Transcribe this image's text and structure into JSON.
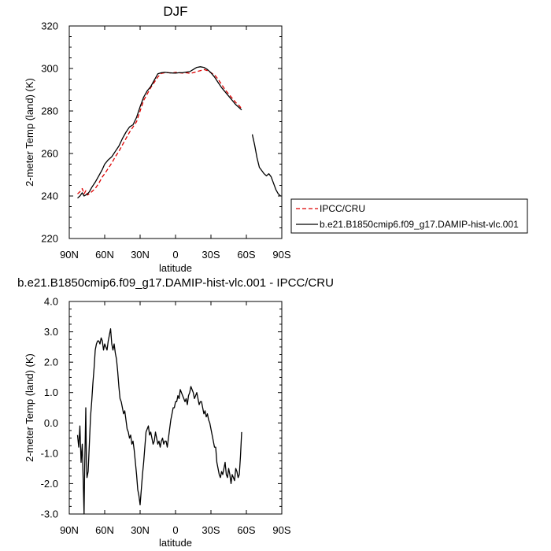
{
  "chart_data": [
    {
      "type": "line",
      "title": "DJF",
      "xlabel": "latitude",
      "ylabel": "2-meter Temp (land) (K)",
      "xlim": [
        90,
        -90
      ],
      "ylim": [
        220,
        320
      ],
      "x_ticks": [
        90,
        60,
        30,
        0,
        -30,
        -60,
        -90
      ],
      "x_tick_labels": [
        "90N",
        "60N",
        "30N",
        "0",
        "30S",
        "60S",
        "90S"
      ],
      "y_ticks": [
        220,
        240,
        260,
        280,
        300,
        320
      ],
      "y_tick_labels": [
        "220",
        "240",
        "260",
        "280",
        "300",
        "320"
      ],
      "legend": {
        "position": "right",
        "entries": [
          "IPCC/CRU",
          "b.e21.B1850cmip6.f09_g17.DAMIP-hist-vlc.001"
        ]
      },
      "series": [
        {
          "name": "IPCC/CRU",
          "color": "#dd0000",
          "dash": "dashed",
          "x": [
            83,
            81,
            79,
            77.5,
            76,
            74.5,
            73,
            71,
            68,
            65,
            62,
            60,
            57,
            54,
            51,
            48,
            45,
            42,
            39,
            36,
            33,
            30,
            27,
            24,
            21,
            18,
            15,
            12,
            9,
            6,
            3,
            0,
            -3,
            -6,
            -9,
            -12,
            -15,
            -18,
            -21,
            -24,
            -27,
            -30,
            -33,
            -36,
            -39,
            -42,
            -45,
            -48,
            -51,
            -54,
            -56
          ],
          "y": [
            241,
            242,
            243.5,
            241,
            242.5,
            240.5,
            241,
            242,
            243.5,
            246,
            249,
            250.5,
            253,
            255.5,
            258.5,
            261,
            264,
            267,
            270,
            272.5,
            275,
            280,
            285,
            288,
            291,
            293.5,
            296,
            297.7,
            298,
            298,
            297.8,
            298.2,
            298,
            297.8,
            298,
            297.7,
            298,
            298.5,
            299,
            299.5,
            299,
            298,
            297,
            295,
            292.5,
            290,
            288,
            286,
            284,
            282.5,
            281
          ]
        },
        {
          "name": "b.e21.B1850cmip6.f09_g17.DAMIP-hist-vlc.001",
          "color": "#000000",
          "dash": "solid",
          "x": [
            83,
            81,
            79,
            77.5,
            76,
            74.5,
            73,
            71,
            68,
            65,
            62,
            60,
            57,
            54,
            51,
            48,
            45,
            42,
            39,
            36,
            33,
            30,
            27,
            24,
            21,
            18,
            15,
            12,
            9,
            6,
            3,
            0,
            -3,
            -6,
            -9,
            -12,
            -15,
            -18,
            -21,
            -24,
            -27,
            -30,
            -33,
            -36,
            -39,
            -42,
            -45,
            -48,
            -51,
            -54,
            -56,
            null,
            -65,
            -67,
            -69,
            -71,
            -73,
            -75,
            -77,
            -79,
            -81,
            -83,
            -85,
            -87,
            -89
          ],
          "y": [
            239,
            240,
            241.5,
            240,
            240.5,
            241,
            242,
            244,
            246.5,
            249.5,
            252.5,
            255,
            257,
            258.5,
            261,
            263.5,
            267,
            270,
            272.5,
            273.5,
            277,
            282,
            286.5,
            289.5,
            291.5,
            294.5,
            297.5,
            298,
            298.2,
            298,
            297.9,
            297.8,
            298,
            298,
            298.3,
            298.5,
            299.5,
            300.5,
            300.8,
            300.5,
            299.5,
            298,
            296,
            293.5,
            291,
            289,
            287,
            285,
            283,
            281.5,
            280.5,
            null,
            269,
            264,
            258,
            253.5,
            252,
            250.5,
            249.5,
            250.5,
            249,
            246,
            243,
            241,
            240
          ]
        }
      ]
    },
    {
      "type": "line",
      "title": "b.e21.B1850cmip6.f09_g17.DAMIP-hist-vlc.001 - IPCC/CRU",
      "xlabel": "latitude",
      "ylabel": "2-meter Temp (land) (K)",
      "xlim": [
        90,
        -90
      ],
      "ylim": [
        -3,
        4
      ],
      "x_ticks": [
        90,
        60,
        30,
        0,
        -30,
        -60,
        -90
      ],
      "x_tick_labels": [
        "90N",
        "60N",
        "30N",
        "0",
        "30S",
        "60S",
        "90S"
      ],
      "y_ticks": [
        -3,
        -2,
        -1,
        0,
        1,
        2,
        3,
        4
      ],
      "y_tick_labels": [
        "-3.0",
        "-2.0",
        "-1.0",
        "0.0",
        "1.0",
        "2.0",
        "3.0",
        "4.0"
      ],
      "series": [
        {
          "color": "#000000",
          "dash": "solid",
          "x": [
            83,
            82,
            81,
            80,
            79,
            78,
            77.5,
            77,
            76.5,
            76,
            75.5,
            75,
            74,
            73,
            72,
            71,
            70,
            69,
            68,
            67,
            66,
            65,
            64,
            63,
            62,
            61,
            60,
            59,
            58,
            57,
            56,
            55,
            54,
            53,
            52,
            51,
            50,
            49,
            48,
            47,
            46,
            45,
            44,
            43,
            42,
            41,
            40,
            39,
            38,
            37,
            36,
            35,
            34,
            33,
            32,
            31,
            30,
            29,
            28,
            27,
            26,
            25,
            24,
            23,
            22,
            21,
            20,
            19,
            18,
            17,
            16,
            15,
            14,
            13,
            12,
            11,
            10,
            9,
            8,
            7,
            6,
            5,
            4,
            3,
            2,
            1,
            0,
            -1,
            -2,
            -3,
            -4,
            -5,
            -6,
            -7,
            -8,
            -9,
            -10,
            -11,
            -12,
            -13,
            -14,
            -15,
            -16,
            -17,
            -18,
            -19,
            -20,
            -21,
            -22,
            -23,
            -24,
            -25,
            -26,
            -27,
            -28,
            -29,
            -30,
            -31,
            -32,
            -33,
            -34,
            -35,
            -36,
            -37,
            -38,
            -39,
            -40,
            -41,
            -42,
            -43,
            -44,
            -45,
            -46,
            -47,
            -48,
            -49,
            -50,
            -51,
            -52,
            -53,
            -54,
            -55,
            -56
          ],
          "y": [
            -0.4,
            -0.8,
            -0.1,
            -1.3,
            -0.7,
            -2.2,
            -3.0,
            -1.6,
            -0.5,
            0.5,
            -1.3,
            -1.8,
            -1.6,
            -0.7,
            0.2,
            0.7,
            1.3,
            1.8,
            2.4,
            2.6,
            2.7,
            2.7,
            2.6,
            2.8,
            2.7,
            2.4,
            2.6,
            2.5,
            2.4,
            2.7,
            2.9,
            3.1,
            2.6,
            2.4,
            2.6,
            2.3,
            2.1,
            1.7,
            1.2,
            0.8,
            0.7,
            0.5,
            0.3,
            0.4,
            0.1,
            -0.2,
            -0.3,
            -0.5,
            -0.4,
            -0.7,
            -0.6,
            -0.9,
            -1.3,
            -1.7,
            -2.2,
            -2.4,
            -2.7,
            -2.2,
            -1.7,
            -1.3,
            -0.8,
            -0.3,
            -0.2,
            -0.1,
            -0.4,
            -0.3,
            -0.5,
            -0.7,
            -0.6,
            -0.3,
            -0.5,
            -0.7,
            -0.6,
            -0.8,
            -0.6,
            -0.5,
            -0.7,
            -0.6,
            -0.6,
            -0.8,
            -0.5,
            -0.2,
            0.1,
            0.3,
            0.5,
            0.5,
            0.7,
            0.7,
            0.9,
            0.8,
            1.1,
            1.0,
            0.9,
            0.8,
            0.7,
            0.8,
            0.6,
            0.9,
            1.0,
            1.2,
            1.1,
            1.0,
            0.8,
            0.9,
            1.0,
            0.8,
            0.6,
            0.7,
            0.7,
            0.5,
            0.3,
            0.4,
            0.2,
            0.3,
            0.1,
            0.0,
            -0.2,
            -0.4,
            -0.6,
            -0.8,
            -0.8,
            -1.3,
            -1.5,
            -1.7,
            -1.8,
            -1.6,
            -1.7,
            -1.5,
            -1.3,
            -1.7,
            -1.8,
            -1.5,
            -1.7,
            -2.0,
            -1.7,
            -1.8,
            -1.9,
            -1.5,
            -1.6,
            -1.8,
            -1.7,
            -1.1,
            -0.3
          ]
        }
      ]
    }
  ]
}
